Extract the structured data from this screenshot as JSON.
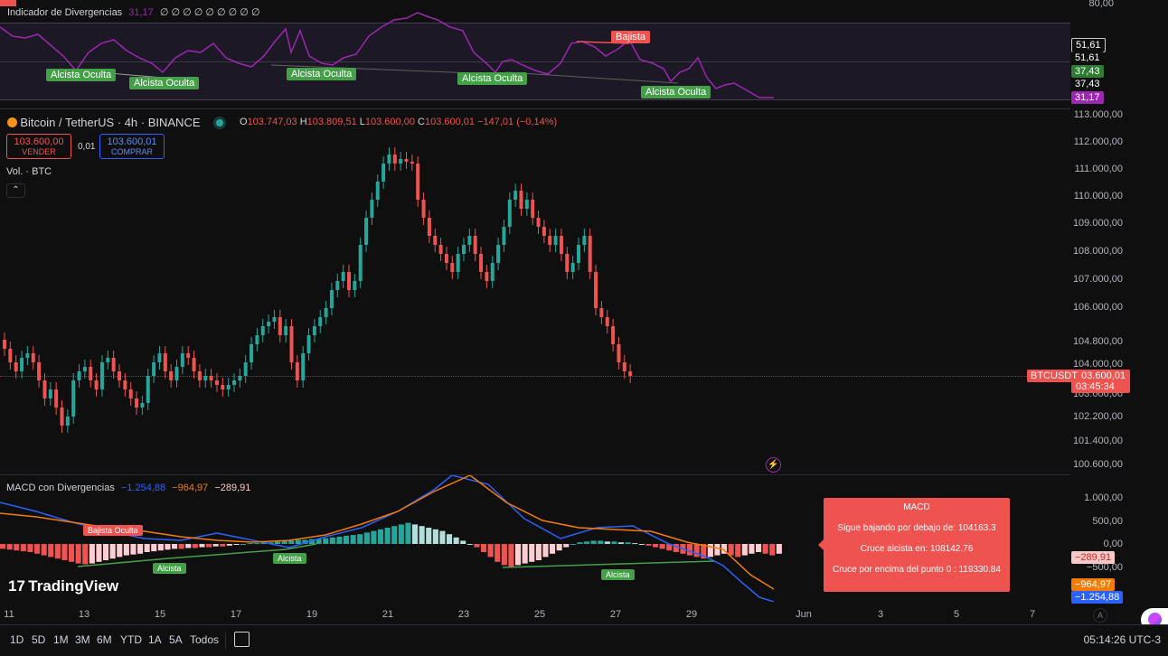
{
  "rsi": {
    "title": "Indicador de Divergencias",
    "value": "31,17",
    "zeros": "∅ ∅ ∅ ∅ ∅ ∅ ∅ ∅ ∅",
    "axis": [
      "80,00"
    ],
    "badges": [
      {
        "text": "51,61",
        "color": "#ffffff",
        "bg": "#0f0f0f"
      },
      {
        "text": "51,61",
        "color": "#ffffff",
        "bg": "#0f0f0f"
      },
      {
        "text": "37,43",
        "color": "#ffffff",
        "bg": "#2e7d32"
      },
      {
        "text": "37,43",
        "color": "#ffffff",
        "bg": "#0f0f0f"
      },
      {
        "text": "31,17",
        "color": "#ffffff",
        "bg": "#9c27b0"
      }
    ],
    "labels": [
      {
        "text": "Alcista Oculta",
        "type": "green"
      },
      {
        "text": "Alcista Oculta",
        "type": "green"
      },
      {
        "text": "Alcista Oculta",
        "type": "green"
      },
      {
        "text": "Alcista Oculta",
        "type": "green"
      },
      {
        "text": "Alcista Oculta",
        "type": "green"
      },
      {
        "text": "Bajista",
        "type": "red"
      }
    ]
  },
  "symbol": {
    "name": "Bitcoin / TetherUS · 4h · BINANCE",
    "o_label": "O",
    "o": "103.747,03",
    "h_label": "H",
    "h": "103.809,51",
    "l_label": "L",
    "l": "103.600,00",
    "c_label": "C",
    "c": "103.600,01",
    "change": "−147,01 (−0,14%)"
  },
  "trade": {
    "sell_price": "103.600,00",
    "sell_label": "VENDER",
    "spread": "0,01",
    "buy_price": "103.600,01",
    "buy_label": "COMPRAR"
  },
  "volume_label": "Vol. · BTC",
  "price_axis": [
    "113.000,00",
    "112.000,00",
    "111.000,00",
    "110.000,00",
    "109.000,00",
    "108.000,00",
    "107.000,00",
    "106.000,00",
    "104.800,00",
    "104.000,00",
    "103.000,00",
    "102.200,00",
    "101.400,00",
    "100.600,00"
  ],
  "last_price": {
    "symbol": "BTCUSDT",
    "price": "103.600,01",
    "countdown": "03:45:34"
  },
  "macd": {
    "title": "MACD con Divergencias",
    "v1": "−1.254,88",
    "v2": "−964,97",
    "v3": "−289,91",
    "axis": [
      "1.000,00",
      "500,00",
      "0,00",
      "−500,00"
    ],
    "badges": [
      {
        "text": "−289,91",
        "color": "#ef5350",
        "bg": "#f8c9c9"
      },
      {
        "text": "−964,97",
        "color": "#ffffff",
        "bg": "#f57c00"
      },
      {
        "text": "−1.254,88",
        "color": "#ffffff",
        "bg": "#2962ff"
      }
    ],
    "labels": [
      {
        "text": "Bajista Oculta",
        "type": "red"
      },
      {
        "text": "Alcista",
        "type": "green"
      },
      {
        "text": "Alcista",
        "type": "green"
      },
      {
        "text": "Alcista",
        "type": "green"
      }
    ],
    "popup": {
      "title": "MACD",
      "line1": "Sigue bajando por debajo de: 104163.3",
      "line2": "Cruce alcista en: 108142.76",
      "line3": "Cruce por encima del punto 0 : 119330.84"
    }
  },
  "brand": "TradingView",
  "dates": [
    "11",
    "13",
    "15",
    "17",
    "19",
    "21",
    "23",
    "25",
    "27",
    "29",
    "Jun",
    "3",
    "5",
    "7"
  ],
  "ranges": [
    "1D",
    "5D",
    "1M",
    "3M",
    "6M",
    "YTD",
    "1A",
    "5A",
    "Todos"
  ],
  "clock": "05:14:26 UTC-3",
  "auto_label": "A",
  "colors": {
    "up": "#26a69a",
    "down": "#ef5350",
    "rsi": "#9c27b0",
    "macd": "#2962ff",
    "signal": "#f57c00"
  }
}
